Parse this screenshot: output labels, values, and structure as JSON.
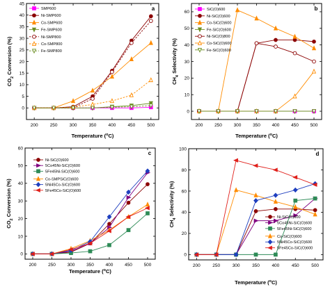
{
  "chart_data": [
    {
      "type": "line",
      "panel": "a",
      "xlabel": "Temperature (°C)",
      "ylabel": "CO2 Conversion (%)",
      "x": [
        200,
        250,
        300,
        350,
        400,
        450,
        500
      ],
      "xlim": [
        180,
        520
      ],
      "ylim": [
        -5,
        45
      ],
      "xticks": [
        200,
        250,
        300,
        350,
        400,
        450,
        500
      ],
      "yticks": [
        0,
        5,
        10,
        15,
        20,
        25,
        30,
        35,
        40,
        45
      ],
      "legend_position": "top-left",
      "series": [
        {
          "name": "SMP600",
          "color": "#ff00ff",
          "marker": "square",
          "filled": true,
          "dashed": false,
          "values": [
            0,
            0,
            0,
            0,
            0,
            0,
            0.3
          ]
        },
        {
          "name": "Ni-SMP600",
          "color": "#8b0000",
          "marker": "circle",
          "filled": true,
          "dashed": false,
          "values": [
            0,
            0,
            0.5,
            5,
            16,
            29,
            39.5
          ]
        },
        {
          "name": "Co-SMP600",
          "color": "#ff8c00",
          "marker": "triangle-up",
          "filled": true,
          "dashed": false,
          "values": [
            0,
            0,
            3,
            7.5,
            13.5,
            21,
            28
          ]
        },
        {
          "name": "Fe-SMP600",
          "color": "#6b8e23",
          "marker": "triangle-down",
          "filled": true,
          "dashed": false,
          "values": [
            0,
            0,
            0,
            0,
            0.5,
            1,
            2
          ]
        },
        {
          "name": "Ni-SMP800",
          "color": "#8b0000",
          "marker": "circle",
          "filled": false,
          "dashed": true,
          "values": [
            0,
            0,
            0,
            4,
            15.5,
            28,
            37.5
          ]
        },
        {
          "name": "Co-SMP800",
          "color": "#ff8c00",
          "marker": "triangle-up",
          "filled": false,
          "dashed": true,
          "values": [
            0,
            0,
            0.3,
            1.5,
            3,
            5.5,
            12
          ]
        },
        {
          "name": "Fe-SMP800",
          "color": "#6b8e23",
          "marker": "triangle-down",
          "filled": false,
          "dashed": true,
          "values": [
            0,
            0,
            0,
            0,
            0.3,
            0.5,
            1
          ]
        }
      ]
    },
    {
      "type": "line",
      "panel": "b",
      "xlabel": "Temperature (°C)",
      "ylabel": "CH4 Selectivity (%)",
      "x": [
        200,
        250,
        300,
        350,
        400,
        450,
        500
      ],
      "xlim": [
        180,
        520
      ],
      "ylim": [
        -5,
        65
      ],
      "xticks": [
        200,
        250,
        300,
        350,
        400,
        450,
        500
      ],
      "yticks": [
        0,
        10,
        20,
        30,
        40,
        50,
        60
      ],
      "legend_position": "top-left",
      "series": [
        {
          "name": "SiC(O)600",
          "color": "#ff00ff",
          "marker": "square",
          "filled": true,
          "dashed": false,
          "values": [
            0,
            0,
            0,
            0,
            0,
            0,
            0
          ]
        },
        {
          "name": "Ni-SiC(O)600",
          "color": "#8b0000",
          "marker": "circle",
          "filled": true,
          "dashed": false,
          "values": [
            0,
            0,
            0,
            41,
            43,
            43,
            42
          ]
        },
        {
          "name": "Co-SiC(O)600",
          "color": "#ff8c00",
          "marker": "triangle-up",
          "filled": true,
          "dashed": false,
          "values": [
            0,
            0,
            61,
            56,
            50,
            45,
            38
          ]
        },
        {
          "name": "Fe-SiC(O)600",
          "color": "#6b8e23",
          "marker": "triangle-down",
          "filled": true,
          "dashed": false,
          "values": [
            0,
            0,
            0,
            0,
            0,
            0,
            0
          ]
        },
        {
          "name": "Ni-SiC(O)800",
          "color": "#8b0000",
          "marker": "circle",
          "filled": false,
          "dashed": false,
          "values": [
            0,
            0,
            0,
            41,
            39,
            35,
            30
          ]
        },
        {
          "name": "Co-SiC(O)600",
          "color": "#ff8c00",
          "marker": "triangle-up",
          "filled": false,
          "dashed": false,
          "values": [
            0,
            0,
            0,
            0,
            0,
            9,
            24
          ]
        },
        {
          "name": "Fe-SiC(O)600",
          "color": "#6b8e23",
          "marker": "triangle-down",
          "filled": false,
          "dashed": false,
          "values": [
            0,
            0,
            0,
            0,
            0,
            0,
            0
          ]
        }
      ]
    },
    {
      "type": "line",
      "panel": "c",
      "xlabel": "Temperature (°C)",
      "ylabel": "CO2 Conversion (%)",
      "x": [
        200,
        250,
        300,
        350,
        400,
        450,
        500
      ],
      "xlim": [
        180,
        520
      ],
      "ylim": [
        -3,
        60
      ],
      "xticks": [
        200,
        250,
        300,
        350,
        400,
        450,
        500
      ],
      "yticks": [
        0,
        10,
        20,
        30,
        40,
        50,
        60
      ],
      "legend_position": "top-left",
      "series": [
        {
          "name": "Ni-SiC(O)600",
          "color": "#8b0000",
          "marker": "circle",
          "filled": true,
          "dashed": false,
          "values": [
            0,
            0,
            1,
            6,
            17,
            29,
            39.5
          ]
        },
        {
          "name": "5Co45Ni-SiC(O)600",
          "color": "#800080",
          "marker": "triangle-right",
          "filled": true,
          "dashed": false,
          "values": [
            0,
            0,
            1.5,
            6,
            15,
            32,
            46
          ]
        },
        {
          "name": "5Fe45Ni-SiC(O)600",
          "color": "#2e8b57",
          "marker": "square",
          "filled": true,
          "dashed": false,
          "values": [
            0,
            0,
            0.5,
            1.5,
            5,
            13.5,
            23
          ]
        },
        {
          "name": "Co-SMPSiC(O)600",
          "color": "#ff8c00",
          "marker": "triangle-up",
          "filled": true,
          "dashed": false,
          "values": [
            0,
            0,
            3,
            7.5,
            13.5,
            21,
            28
          ]
        },
        {
          "name": "5Ni45Co-SiC(O)600",
          "color": "#1f3fbf",
          "marker": "diamond",
          "filled": true,
          "dashed": false,
          "values": [
            0,
            0,
            2,
            7,
            21,
            35,
            47
          ]
        },
        {
          "name": "5Fe45Co-SiC(O)600",
          "color": "#e0201b",
          "marker": "triangle-left",
          "filled": true,
          "dashed": false,
          "values": [
            0,
            0,
            2.5,
            6,
            13,
            21,
            26
          ]
        }
      ]
    },
    {
      "type": "line",
      "panel": "d",
      "xlabel": "Temperature (°C)",
      "ylabel": "CH4 Selectivity (%)",
      "x": [
        200,
        250,
        300,
        350,
        400,
        450,
        500
      ],
      "xlim": [
        180,
        520
      ],
      "ylim": [
        -5,
        100
      ],
      "xticks": [
        200,
        250,
        300,
        350,
        400,
        450,
        500
      ],
      "yticks": [
        0,
        20,
        40,
        60,
        80,
        100
      ],
      "legend_position": "bottom-left",
      "series": [
        {
          "name": "Ni-SiC(O)600",
          "color": "#8b0000",
          "marker": "circle",
          "filled": true,
          "dashed": false,
          "values": [
            0,
            0,
            0,
            41,
            43,
            43,
            42
          ]
        },
        {
          "name": "5Co45Ni-SiC(O)600",
          "color": "#800080",
          "marker": "triangle-right",
          "filled": true,
          "dashed": false,
          "values": [
            0,
            0,
            0,
            32,
            32,
            37,
            53
          ]
        },
        {
          "name": "5Fe45Ni-SiC(O)600",
          "color": "#2e8b57",
          "marker": "square",
          "filled": true,
          "dashed": false,
          "values": [
            0,
            0,
            0,
            0,
            0,
            51,
            53
          ]
        },
        {
          "name": "Co-SiC(O)600",
          "color": "#ff8c00",
          "marker": "triangle-up",
          "filled": true,
          "dashed": false,
          "values": [
            0,
            0,
            61,
            56,
            50,
            45,
            38
          ]
        },
        {
          "name": "5Ni45Co-SiC(O)600",
          "color": "#1f3fbf",
          "marker": "diamond",
          "filled": true,
          "dashed": false,
          "values": [
            0,
            0,
            0,
            51,
            56,
            61,
            67
          ]
        },
        {
          "name": "5Fe45Co-SiC(O)600",
          "color": "#e0201b",
          "marker": "triangle-left",
          "filled": true,
          "dashed": false,
          "values": [
            0,
            0,
            89,
            84,
            80,
            73,
            66
          ]
        }
      ]
    }
  ]
}
